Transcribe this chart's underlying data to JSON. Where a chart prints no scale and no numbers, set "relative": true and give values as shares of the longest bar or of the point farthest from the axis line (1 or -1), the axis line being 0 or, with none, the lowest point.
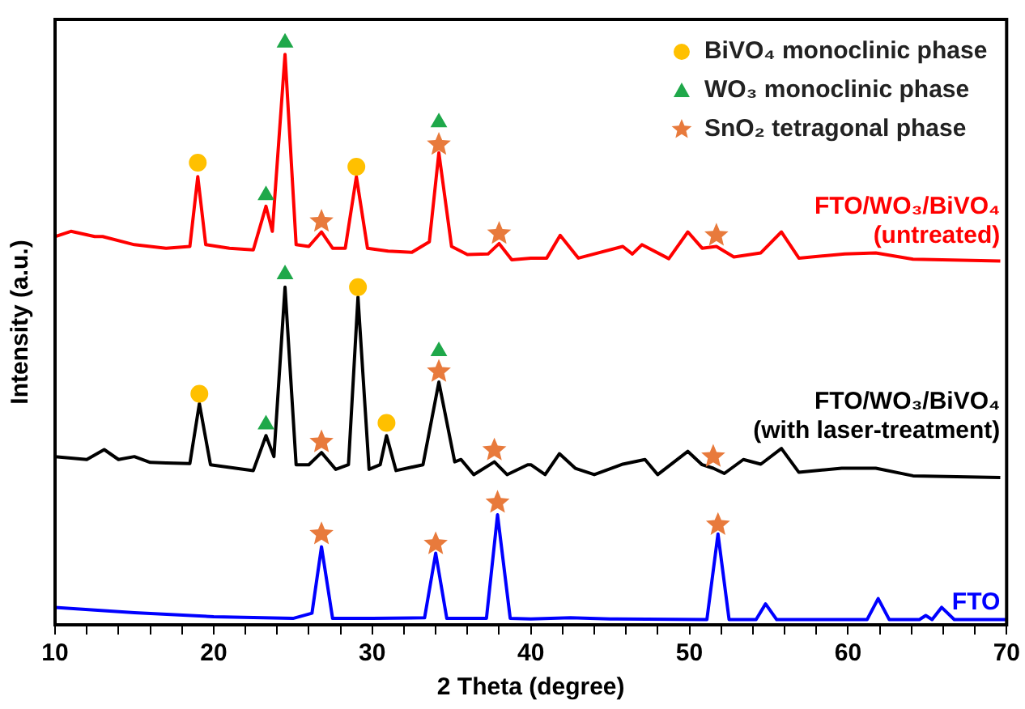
{
  "chart_data": {
    "type": "line",
    "xlabel": "2 Theta (degree)",
    "ylabel": "Intensity (a.u.)",
    "relative": true,
    "tick_labels": "x",
    "legend": "top right",
    "xlim": [
      10,
      70
    ],
    "xticks": [
      10,
      {
        "value": 12,
        "label": null
      },
      {
        "value": 14,
        "label": null
      },
      {
        "value": 16,
        "label": null
      },
      {
        "value": 18,
        "label": null
      },
      20,
      {
        "value": 22,
        "label": null
      },
      {
        "value": 24,
        "label": null
      },
      {
        "value": 26,
        "label": null
      },
      {
        "value": 28,
        "label": null
      },
      30,
      {
        "value": 32,
        "label": null
      },
      {
        "value": 34,
        "label": null
      },
      {
        "value": 36,
        "label": null
      },
      {
        "value": 38,
        "label": null
      },
      40,
      {
        "value": 42,
        "label": null
      },
      {
        "value": 44,
        "label": null
      },
      {
        "value": 46,
        "label": null
      },
      {
        "value": 48,
        "label": null
      },
      50,
      {
        "value": 52,
        "label": null
      },
      {
        "value": 54,
        "label": null
      },
      {
        "value": 56,
        "label": null
      },
      {
        "value": 58,
        "label": null
      },
      60,
      {
        "value": 62,
        "label": null
      },
      {
        "value": 64,
        "label": null
      },
      {
        "value": 66,
        "label": null
      },
      {
        "value": 68,
        "label": null
      },
      70
    ],
    "series": [
      {
        "name": "FTO/WO₃/BiVO₄\n(untreated)",
        "type": "line",
        "marker": "none",
        "color": "#ff0000",
        "x": [
          10,
          11,
          12.5,
          13,
          15,
          17,
          18.5,
          19,
          19.5,
          21,
          22.5,
          23.3,
          23.7,
          24.5,
          25.2,
          26,
          26.8,
          27.5,
          28.3,
          29,
          29.7,
          31,
          32.5,
          33.6,
          34.2,
          35,
          36,
          37.3,
          38,
          38.8,
          40,
          41,
          41.85,
          43,
          45.8,
          46.4,
          47,
          48.7,
          49.9,
          50.8,
          51.7,
          52.8,
          54.5,
          55.8,
          56.9,
          59.8,
          61.75,
          64.1,
          69.6
        ],
        "values": [
          0.667,
          0.676,
          0.667,
          0.667,
          0.653,
          0.647,
          0.65,
          0.77,
          0.653,
          0.647,
          0.644,
          0.719,
          0.676,
          0.98,
          0.653,
          0.65,
          0.675,
          0.647,
          0.647,
          0.77,
          0.647,
          0.642,
          0.64,
          0.658,
          0.811,
          0.65,
          0.636,
          0.637,
          0.655,
          0.627,
          0.63,
          0.63,
          0.669,
          0.63,
          0.65,
          0.637,
          0.653,
          0.629,
          0.675,
          0.647,
          0.65,
          0.632,
          0.639,
          0.675,
          0.63,
          0.637,
          0.639,
          0.628,
          0.625
        ]
      },
      {
        "name": "FTO/WO₃/BiVO₄\n(with laser-treatment)",
        "type": "line",
        "marker": "none",
        "color": "#000000",
        "x": [
          10,
          12,
          13.1,
          14,
          15,
          16,
          17,
          18.5,
          19.1,
          19.8,
          22.5,
          23.3,
          23.8,
          24.5,
          25.2,
          26,
          26.8,
          27.7,
          28.5,
          29.1,
          29.8,
          30.5,
          30.9,
          31.5,
          33.2,
          34.2,
          35.2,
          35.6,
          36.4,
          37.7,
          38.5,
          39.8,
          40.0,
          40.9,
          41.8,
          42.8,
          44.0,
          45.8,
          47.2,
          48.0,
          49.9,
          50.8,
          51.5,
          52.2,
          53.4,
          54.5,
          55.8,
          56.9,
          59.6,
          61.75,
          64.1,
          69.6
        ],
        "values": [
          0.289,
          0.284,
          0.301,
          0.284,
          0.289,
          0.279,
          0.278,
          0.277,
          0.38,
          0.275,
          0.265,
          0.325,
          0.289,
          0.58,
          0.275,
          0.275,
          0.296,
          0.267,
          0.275,
          0.563,
          0.267,
          0.275,
          0.325,
          0.265,
          0.275,
          0.417,
          0.28,
          0.284,
          0.258,
          0.28,
          0.258,
          0.275,
          0.275,
          0.258,
          0.294,
          0.269,
          0.258,
          0.276,
          0.284,
          0.258,
          0.298,
          0.275,
          0.269,
          0.26,
          0.284,
          0.276,
          0.303,
          0.262,
          0.269,
          0.269,
          0.256,
          0.253
        ]
      },
      {
        "name": "FTO",
        "type": "line",
        "marker": "none",
        "color": "#0000ff",
        "x": [
          10,
          15,
          20,
          25,
          26.2,
          26.8,
          27.5,
          30,
          33.3,
          34,
          34.7,
          37.2,
          37.9,
          38.7,
          40,
          42.5,
          45,
          51.1,
          51.8,
          52.5,
          54.2,
          54.8,
          55.5,
          61.2,
          61.9,
          62.6,
          64.5,
          64.9,
          65.3,
          65.9,
          66.7,
          70
        ],
        "values": [
          0.03,
          0.021,
          0.014,
          0.011,
          0.02,
          0.134,
          0.011,
          0.011,
          0.012,
          0.123,
          0.011,
          0.011,
          0.189,
          0.011,
          0.01,
          0.012,
          0.01,
          0.009,
          0.156,
          0.009,
          0.009,
          0.036,
          0.009,
          0.009,
          0.045,
          0.009,
          0.009,
          0.016,
          0.009,
          0.03,
          0.009,
          0.009
        ]
      },
      {
        "name": "BiVO₄ monoclinic phase",
        "type": "scatter",
        "marker": "circle",
        "color": "#ffc000",
        "x": [
          19,
          29,
          19.1,
          29.1,
          30.9
        ],
        "values": [
          0.794,
          0.787,
          0.397,
          0.58,
          0.347
        ]
      },
      {
        "name": "WO₃ monoclinic phase",
        "type": "scatter",
        "marker": "triangle",
        "color": "#1fa84a",
        "x": [
          24.5,
          23.3,
          34.2,
          24.5,
          23.3,
          34.2
        ],
        "values": [
          1,
          0.738,
          0.863,
          0.602,
          0.344,
          0.47
        ]
      },
      {
        "name": "SnO₂ tetragonal phase",
        "type": "scatter",
        "marker": "star",
        "color": "#e87a3c",
        "x": [
          26.8,
          34.2,
          38,
          51.7,
          26.8,
          34.2,
          37.7,
          51.5,
          26.8,
          34,
          37.9,
          51.8
        ],
        "values": [
          0.693,
          0.825,
          0.672,
          0.669,
          0.314,
          0.435,
          0.3,
          0.289,
          0.156,
          0.139,
          0.21,
          0.172
        ]
      }
    ]
  }
}
